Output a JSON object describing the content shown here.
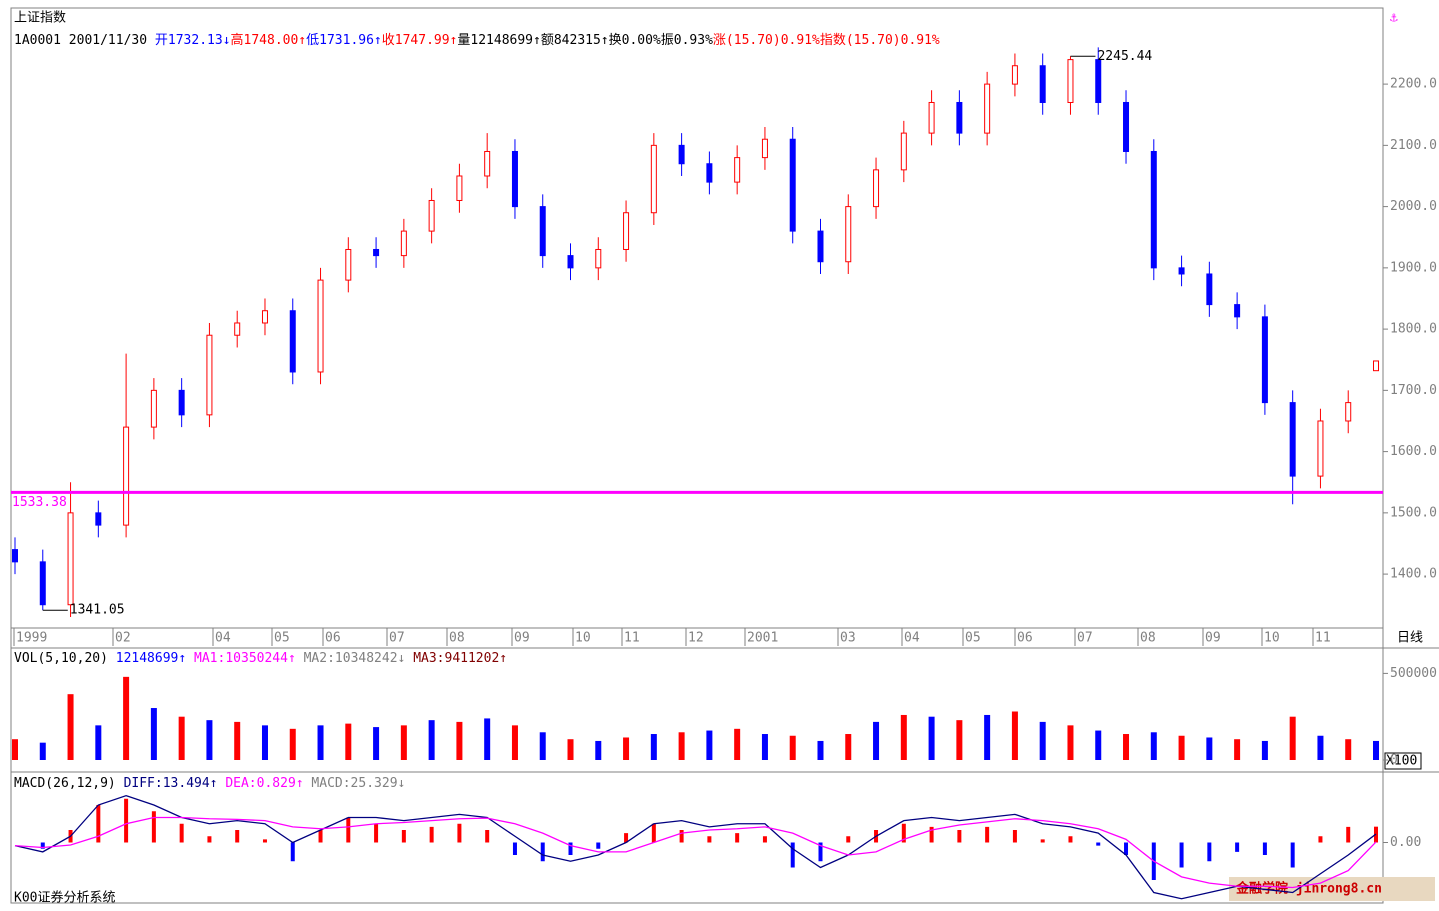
{
  "chart_data": [
    {
      "type": "candlestick",
      "title": "上证指数",
      "info": [
        {
          "text": "1A0001 2001/11/30 ",
          "color": "#000000"
        },
        {
          "text": "开1732.13↓",
          "color": "#0000ff"
        },
        {
          "text": "高1748.00↑",
          "color": "#ff0000"
        },
        {
          "text": "低1731.96↑",
          "color": "#0000ff"
        },
        {
          "text": "收1747.99↑",
          "color": "#ff0000"
        },
        {
          "text": "量12148699↑",
          "color": "#000000"
        },
        {
          "text": "额842315↑",
          "color": "#000000"
        },
        {
          "text": "换0.00%",
          "color": "#000000"
        },
        {
          "text": "振0.93%",
          "color": "#000000"
        },
        {
          "text": "涨(15.70)0.91%",
          "color": "#ff0000"
        },
        {
          "text": "指数(15.70)0.91%",
          "color": "#ff0000"
        }
      ],
      "period": "日线",
      "x_labels": [
        "1999",
        "02",
        "04",
        "05",
        "06",
        "07",
        "08",
        "09",
        "10",
        "11",
        "12",
        "2001",
        "03",
        "04",
        "05",
        "06",
        "07",
        "08",
        "09",
        "10",
        "11"
      ],
      "open": [
        1440,
        1420,
        1350,
        1500,
        1480,
        1640,
        1700,
        1660,
        1790,
        1810,
        1830,
        1730,
        1880,
        1930,
        1920,
        1960,
        2010,
        2050,
        2090,
        2000,
        1920,
        1900,
        1930,
        1990,
        2100,
        2070,
        2040,
        2080,
        2110,
        1960,
        1910,
        2000,
        2060,
        2120,
        2170,
        2120,
        2200,
        2230,
        2170,
        2240,
        2170,
        2090,
        1900,
        1890,
        1840,
        1820,
        1680,
        1560,
        1650,
        1732.13
      ],
      "high": [
        1460,
        1440,
        1550,
        1520,
        1760,
        1720,
        1720,
        1810,
        1830,
        1850,
        1850,
        1900,
        1950,
        1950,
        1980,
        2030,
        2070,
        2120,
        2110,
        2020,
        1940,
        1950,
        2010,
        2120,
        2120,
        2090,
        2100,
        2130,
        2130,
        1980,
        2020,
        2080,
        2140,
        2190,
        2190,
        2220,
        2250,
        2250,
        2245.44,
        2260,
        2190,
        2110,
        1920,
        1910,
        1860,
        1840,
        1700,
        1670,
        1700,
        1748
      ],
      "low": [
        1400,
        1341.05,
        1330,
        1460,
        1460,
        1620,
        1640,
        1640,
        1770,
        1790,
        1710,
        1710,
        1860,
        1900,
        1900,
        1940,
        1990,
        2030,
        1980,
        1900,
        1880,
        1880,
        1910,
        1970,
        2050,
        2020,
        2020,
        2060,
        1940,
        1890,
        1890,
        1980,
        2040,
        2100,
        2100,
        2100,
        2180,
        2150,
        2150,
        2150,
        2070,
        1880,
        1870,
        1820,
        1800,
        1660,
        1514,
        1540,
        1630,
        1731.96
      ],
      "close": [
        1420,
        1350,
        1500,
        1480,
        1640,
        1700,
        1660,
        1790,
        1810,
        1830,
        1730,
        1880,
        1930,
        1920,
        1960,
        2010,
        2050,
        2090,
        2000,
        1920,
        1900,
        1930,
        1990,
        2100,
        2070,
        2040,
        2080,
        2110,
        1960,
        1910,
        2000,
        2060,
        2120,
        2170,
        2120,
        2200,
        2230,
        2170,
        2240,
        2170,
        2090,
        1900,
        1890,
        1840,
        1820,
        1680,
        1560,
        1650,
        1680,
        1747.99
      ],
      "up_color": "#ff0000",
      "down_color": "#0000ff",
      "ylim": [
        1312,
        2321
      ],
      "yticks": [
        {
          "value": 1400,
          "label": "1400.0"
        },
        {
          "value": 1500,
          "label": "1500.0"
        },
        {
          "value": 1600,
          "label": "1600.0"
        },
        {
          "value": 1700,
          "label": "1700.0"
        },
        {
          "value": 1800,
          "label": "1800.0"
        },
        {
          "value": 1900,
          "label": "1900.0"
        },
        {
          "value": 2000,
          "label": "2000.0"
        },
        {
          "value": 2100,
          "label": "2100.0"
        },
        {
          "value": 2200,
          "label": "2200.0"
        }
      ],
      "reference_line": {
        "value": 1533.38,
        "label": "1533.38",
        "color": "#ff00ff"
      },
      "annotations": [
        {
          "value": 1341.05,
          "label": "1341.05"
        },
        {
          "value": 2245.44,
          "label": "2245.44"
        }
      ]
    },
    {
      "type": "bar",
      "legend": [
        {
          "text": "VOL(5,10,20) ",
          "color": "#000000"
        },
        {
          "text": "12148699↑ ",
          "color": "#0000ff"
        },
        {
          "text": "MA1:10350244↑ ",
          "color": "#ff00ff"
        },
        {
          "text": "MA2:10348242↓ ",
          "color": "#808080"
        },
        {
          "text": "MA3:9411202↑",
          "color": "#800000"
        }
      ],
      "unit_label": "X100",
      "values": [
        120000,
        100000,
        380000,
        200000,
        480000,
        300000,
        250000,
        230000,
        220000,
        200000,
        180000,
        200000,
        210000,
        190000,
        200000,
        230000,
        220000,
        240000,
        200000,
        160000,
        120000,
        110000,
        130000,
        150000,
        160000,
        170000,
        180000,
        150000,
        140000,
        110000,
        150000,
        220000,
        260000,
        250000,
        230000,
        260000,
        280000,
        220000,
        200000,
        170000,
        150000,
        160000,
        140000,
        130000,
        120000,
        110000,
        250000,
        140000,
        120000,
        110000
      ],
      "ylim": [
        0,
        560000
      ],
      "yticks": [
        0,
        500000
      ]
    },
    {
      "type": "macd",
      "legend": [
        {
          "text": "MACD(26,12,9) ",
          "color": "#000000"
        },
        {
          "text": "DIFF:13.494↑ ",
          "color": "#000080"
        },
        {
          "text": "DEA:0.829↑ ",
          "color": "#ff00ff"
        },
        {
          "text": "MACD:25.329↓",
          "color": "#808080"
        }
      ],
      "values": [
        0,
        -10,
        20,
        60,
        70,
        50,
        30,
        10,
        20,
        5,
        -30,
        20,
        40,
        30,
        20,
        25,
        30,
        20,
        -20,
        -30,
        -20,
        -10,
        15,
        30,
        20,
        10,
        15,
        10,
        -40,
        -30,
        10,
        20,
        30,
        25,
        20,
        25,
        20,
        5,
        10,
        -5,
        -20,
        -60,
        -40,
        -30,
        -15,
        -20,
        -40,
        10,
        25,
        25.329
      ],
      "series": [
        {
          "name": "DIFF",
          "color": "#000080",
          "values": [
            -5,
            -15,
            10,
            60,
            75,
            60,
            40,
            30,
            35,
            30,
            0,
            20,
            40,
            40,
            35,
            40,
            45,
            40,
            10,
            -20,
            -30,
            -20,
            0,
            30,
            35,
            25,
            30,
            30,
            -10,
            -40,
            -20,
            10,
            35,
            40,
            35,
            40,
            45,
            30,
            25,
            15,
            -20,
            -80,
            -90,
            -80,
            -70,
            -75,
            -80,
            -50,
            -20,
            13.494
          ]
        },
        {
          "name": "DEA",
          "color": "#ff00ff",
          "values": [
            -5,
            -8,
            -4,
            10,
            30,
            40,
            40,
            38,
            37,
            35,
            25,
            22,
            25,
            30,
            32,
            35,
            38,
            39,
            30,
            15,
            -5,
            -15,
            -15,
            0,
            15,
            20,
            22,
            25,
            15,
            -5,
            -20,
            -15,
            5,
            20,
            28,
            33,
            38,
            35,
            30,
            22,
            5,
            -30,
            -55,
            -65,
            -70,
            -70,
            -72,
            -65,
            -45,
            0.829
          ]
        }
      ],
      "up_color": "#ff0000",
      "down_color": "#0000ff",
      "ylim": [
        -100,
        100
      ],
      "yticks": [
        {
          "value": 0,
          "label": "0.00"
        }
      ]
    }
  ],
  "footer": "K00证券分析系统",
  "watermark": "金融学院 jinrong8.cn"
}
